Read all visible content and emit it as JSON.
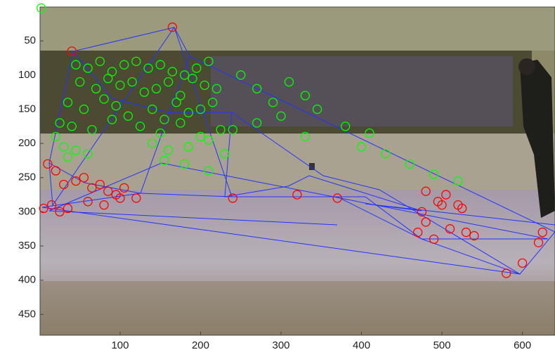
{
  "chart_data": {
    "type": "scatter",
    "xlim": [
      0.5,
      640.5
    ],
    "ylim": [
      0.5,
      480.5
    ],
    "y_reversed": true,
    "xticks": [
      100,
      200,
      300,
      400,
      500,
      600
    ],
    "yticks": [
      50,
      100,
      150,
      200,
      250,
      300,
      350,
      400,
      450
    ],
    "series": [
      {
        "color": "#00ff00",
        "x": [
          2,
          45,
          60,
          75,
          90,
          105,
          120,
          135,
          150,
          165,
          180,
          195,
          210,
          50,
          70,
          85,
          100,
          115,
          130,
          145,
          160,
          175,
          190,
          205,
          220,
          35,
          55,
          80,
          95,
          110,
          140,
          155,
          170,
          185,
          200,
          215,
          25,
          40,
          65,
          90,
          125,
          150,
          175,
          200,
          225,
          30,
          45,
          60,
          140,
          160,
          185,
          210,
          230,
          250,
          270,
          290,
          310,
          330,
          345,
          300,
          270,
          240,
          330,
          380,
          410,
          400,
          430,
          460,
          490,
          520,
          210,
          180,
          155,
          20,
          35
        ],
        "y": [
          2,
          85,
          90,
          80,
          95,
          85,
          80,
          90,
          85,
          95,
          100,
          90,
          80,
          110,
          120,
          105,
          115,
          110,
          125,
          120,
          110,
          130,
          105,
          115,
          120,
          140,
          150,
          135,
          145,
          160,
          150,
          165,
          140,
          155,
          150,
          140,
          170,
          175,
          180,
          165,
          175,
          185,
          170,
          190,
          180,
          205,
          210,
          215,
          200,
          210,
          205,
          195,
          215,
          100,
          120,
          140,
          110,
          130,
          150,
          160,
          170,
          180,
          190,
          175,
          185,
          205,
          215,
          230,
          245,
          255,
          240,
          230,
          225,
          190,
          220
        ]
      },
      {
        "color": "#ff0000",
        "x": [
          165,
          40,
          10,
          20,
          30,
          45,
          55,
          65,
          75,
          85,
          95,
          105,
          120,
          15,
          35,
          60,
          80,
          100,
          5,
          25,
          240,
          320,
          370,
          480,
          495,
          505,
          520,
          470,
          480,
          490,
          510,
          530,
          540,
          475,
          500,
          525,
          580,
          600,
          625,
          620
        ],
        "y": [
          30,
          65,
          230,
          240,
          260,
          255,
          250,
          265,
          260,
          270,
          275,
          265,
          280,
          290,
          295,
          285,
          290,
          280,
          295,
          300,
          280,
          275,
          280,
          270,
          285,
          275,
          290,
          330,
          315,
          340,
          325,
          330,
          335,
          300,
          290,
          295,
          390,
          375,
          330,
          345
        ]
      }
    ]
  }
}
